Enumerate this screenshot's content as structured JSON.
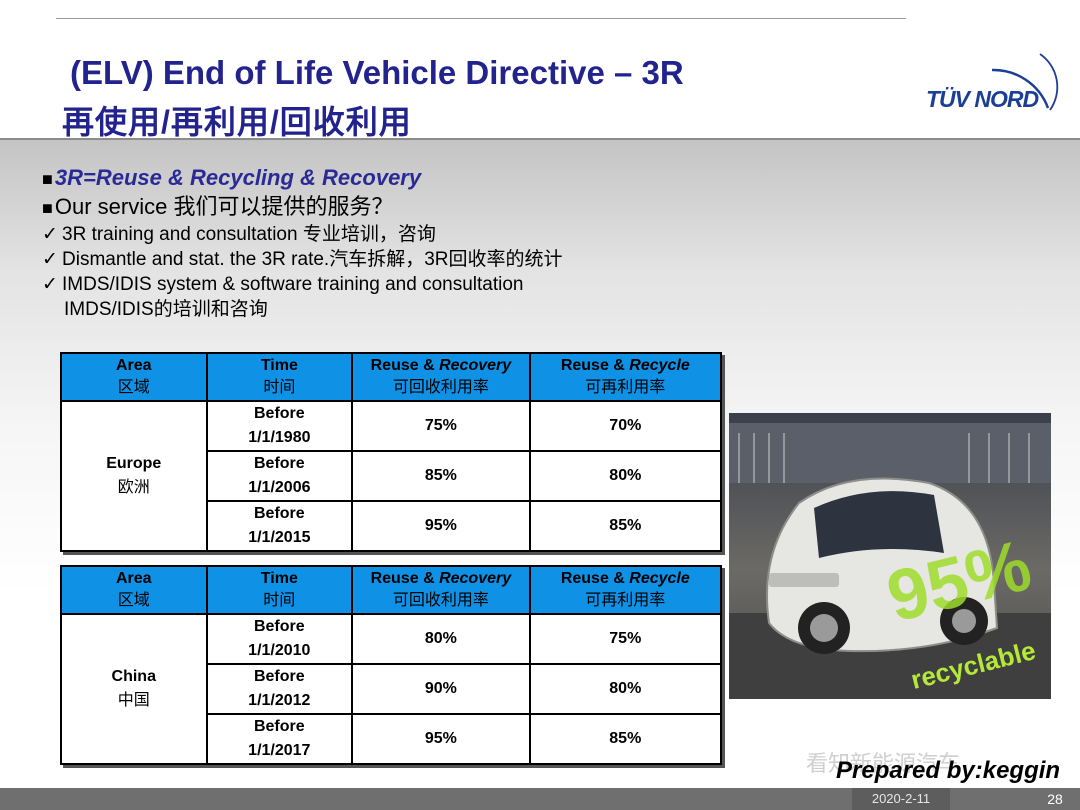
{
  "title": {
    "line1": "(ELV) End of Life Vehicle Directive – 3R",
    "line2": "再使用/再利用/回收利用"
  },
  "logo": {
    "text": "TÜV NORD"
  },
  "bullets": {
    "main1": "3R=Reuse & Recycling & Recovery",
    "main2": "Our service 我们可以提供的服务？",
    "sub1": "3R training and consultation 专业培训，咨询",
    "sub2": "Dismantle and stat. the 3R rate.汽车拆解，3R回收率的统计",
    "sub3": "IMDS/IDIS system & software training and consultation",
    "sub3_cn": "IMDS/IDIS的培训和咨询"
  },
  "tables": [
    {
      "headers": {
        "area_en": "Area",
        "area_cn": "区域",
        "time_en": "Time",
        "time_cn": "时间",
        "recovery_en_a": "Reuse & ",
        "recovery_en_b": "Recovery",
        "recovery_cn": "可回收利用率",
        "recycle_en_a": "Reuse & ",
        "recycle_en_b": "Recycle",
        "recycle_cn": "可再利用率"
      },
      "region_en": "Europe",
      "region_cn": "欧洲",
      "rows": [
        {
          "time_a": "Before",
          "time_b": "1/1/1980",
          "recovery": "75%",
          "recycle": "70%"
        },
        {
          "time_a": "Before",
          "time_b": "1/1/2006",
          "recovery": "85%",
          "recycle": "80%"
        },
        {
          "time_a": "Before",
          "time_b": "1/1/2015",
          "recovery": "95%",
          "recycle": "85%"
        }
      ]
    },
    {
      "headers": {
        "area_en": "Area",
        "area_cn": "区域",
        "time_en": "Time",
        "time_cn": "时间",
        "recovery_en_a": "Reuse & ",
        "recovery_en_b": "Recovery",
        "recovery_cn": "可回收利用率",
        "recycle_en_a": "Reuse & ",
        "recycle_en_b": "Recycle",
        "recycle_cn": "可再利用率"
      },
      "region_en": "China",
      "region_cn": "中国",
      "rows": [
        {
          "time_a": "Before",
          "time_b": "1/1/2010",
          "recovery": "80%",
          "recycle": "75%"
        },
        {
          "time_a": "Before",
          "time_b": "1/1/2012",
          "recovery": "90%",
          "recycle": "80%"
        },
        {
          "time_a": "Before",
          "time_b": "1/1/2017",
          "recovery": "95%",
          "recycle": "85%"
        }
      ]
    }
  ],
  "photo": {
    "big_text": "95%",
    "caption": "recyclable"
  },
  "watermark": "看知新能源汽车",
  "prepared_by": "Prepared by:keggin",
  "footer": {
    "date": "2020-2-11",
    "page": "28"
  },
  "colors": {
    "title": "#23238e",
    "table_header": "#0f91e6",
    "logo": "#1b3f94"
  }
}
